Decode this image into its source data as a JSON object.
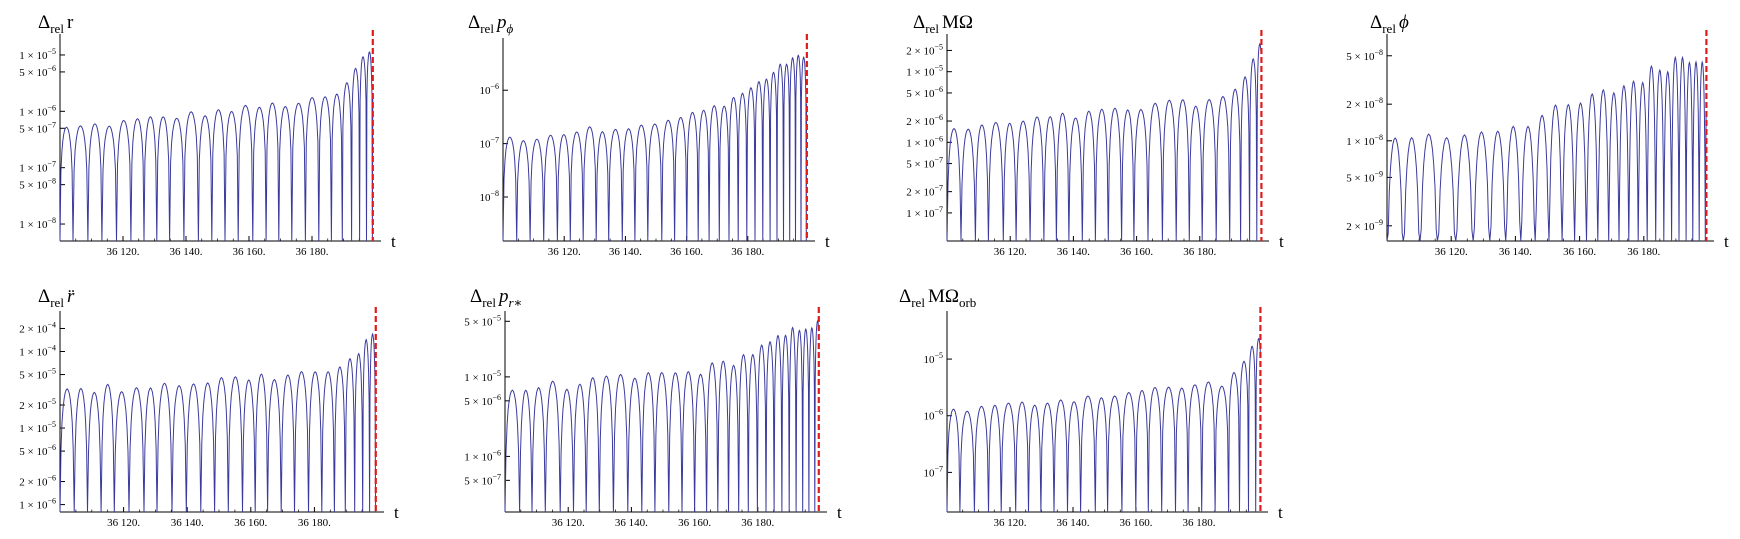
{
  "figure": {
    "colors": {
      "curve": "#3b3b9e",
      "marker": "#e01b1b",
      "axis": "#000000"
    }
  },
  "chart_data": [
    {
      "type": "line",
      "title_main": "Δ",
      "title_sub": "rel",
      "title_var": "r",
      "xlabel": "t",
      "xlim": [
        36100,
        36200
      ],
      "xticks": [
        "36 120.",
        "36 140.",
        "36 160.",
        "36 180."
      ],
      "xtick_values": [
        36120,
        36140,
        36160,
        36180
      ],
      "yscale": "log",
      "ylim": [
        5e-09,
        2e-05
      ],
      "yticks": [
        {
          "label": "1 × 10",
          "exp": "−5",
          "value": 1e-05
        },
        {
          "label": "5 × 10",
          "exp": "−6",
          "value": 5e-06
        },
        {
          "label": "1 × 10",
          "exp": "−6",
          "value": 1e-06
        },
        {
          "label": "5 × 10",
          "exp": "−7",
          "value": 5e-07
        },
        {
          "label": "1 × 10",
          "exp": "−7",
          "value": 1e-07
        },
        {
          "label": "5 × 10",
          "exp": "−8",
          "value": 5e-08
        },
        {
          "label": "1 × 10",
          "exp": "−8",
          "value": 1e-08
        }
      ],
      "series_shape": {
        "x_start": 36100,
        "peak_spacing": 4.3,
        "base_peak": 5e-07,
        "growth_start": 36180,
        "final_peak": 1.2e-05,
        "final_spacing": 1.6
      },
      "marker_x": 36199.3
    },
    {
      "type": "line",
      "title_main": "Δ",
      "title_sub": "rel",
      "title_var": "p",
      "title_var_sub": "ϕ",
      "xlabel": "t",
      "xlim": [
        36100,
        36200
      ],
      "xticks": [
        "36 120.",
        "36 140.",
        "36 160.",
        "36 180."
      ],
      "xtick_values": [
        36120,
        36140,
        36160,
        36180
      ],
      "yscale": "log",
      "ylim": [
        1.5e-09,
        8e-06
      ],
      "yticks": [
        {
          "label": "10",
          "exp": "−6",
          "value": 1e-06
        },
        {
          "label": "10",
          "exp": "−7",
          "value": 1e-07
        },
        {
          "label": "10",
          "exp": "−8",
          "value": 1e-08
        }
      ],
      "series_shape": {
        "x_start": 36100,
        "peak_spacing": 4.3,
        "base_peak": 1.2e-07,
        "growth_start": 36150,
        "final_peak": 4e-06,
        "final_spacing": 1.6
      },
      "marker_x": 36199.3
    },
    {
      "type": "line",
      "title_main": "Δ",
      "title_sub": "rel",
      "title_var": "MΩ",
      "xlabel": "t",
      "xlim": [
        36100,
        36200
      ],
      "xticks": [
        "36 120.",
        "36 140.",
        "36 160.",
        "36 180."
      ],
      "xtick_values": [
        36120,
        36140,
        36160,
        36180
      ],
      "yscale": "log",
      "ylim": [
        4e-08,
        3e-05
      ],
      "yticks": [
        {
          "label": "2 × 10",
          "exp": "−5",
          "value": 2e-05
        },
        {
          "label": "1 × 10",
          "exp": "−5",
          "value": 1e-05
        },
        {
          "label": "5 × 10",
          "exp": "−6",
          "value": 5e-06
        },
        {
          "label": "2 × 10",
          "exp": "−6",
          "value": 2e-06
        },
        {
          "label": "1 × 10",
          "exp": "−6",
          "value": 1e-06
        },
        {
          "label": "5 × 10",
          "exp": "−7",
          "value": 5e-07
        },
        {
          "label": "2 × 10",
          "exp": "−7",
          "value": 2e-07
        },
        {
          "label": "1 × 10",
          "exp": "−7",
          "value": 1e-07
        }
      ],
      "series_shape": {
        "x_start": 36100,
        "peak_spacing": 4.3,
        "base_peak": 1.5e-06,
        "growth_start": 36185,
        "final_peak": 2.2e-05,
        "final_spacing": 1.6
      },
      "marker_x": 36199.5
    },
    {
      "type": "line",
      "title_main": "Δ",
      "title_sub": "rel",
      "title_var": "ϕ",
      "xlabel": "t",
      "xlim": [
        36100,
        36200
      ],
      "xticks": [
        "36 120.",
        "36 140.",
        "36 160.",
        "36 180."
      ],
      "xtick_values": [
        36120,
        36140,
        36160,
        36180
      ],
      "yscale": "log",
      "ylim": [
        1.5e-09,
        7e-08
      ],
      "yticks": [
        {
          "label": "5 × 10",
          "exp": "−8",
          "value": 5e-08
        },
        {
          "label": "2 × 10",
          "exp": "−8",
          "value": 2e-08
        },
        {
          "label": "1 × 10",
          "exp": "−8",
          "value": 1e-08
        },
        {
          "label": "5 × 10",
          "exp": "−9",
          "value": 5e-09
        },
        {
          "label": "2 × 10",
          "exp": "−9",
          "value": 2e-09
        }
      ],
      "series_shape": {
        "x_start": 36100,
        "peak_spacing": 5.5,
        "base_peak": 1e-08,
        "growth_start": 36120,
        "final_peak": 5e-08,
        "final_spacing": 1.8
      },
      "marker_x": 36199.5
    },
    {
      "type": "line",
      "title_main": "Δ",
      "title_sub": "rel",
      "title_var": "r̈",
      "xlabel": "t",
      "xlim": [
        36100,
        36200
      ],
      "xticks": [
        "36 120.",
        "36 140.",
        "36 160.",
        "36 180."
      ],
      "xtick_values": [
        36120,
        36140,
        36160,
        36180
      ],
      "yscale": "log",
      "ylim": [
        8e-07,
        0.0003
      ],
      "yticks": [
        {
          "label": "2 × 10",
          "exp": "−4",
          "value": 0.0002
        },
        {
          "label": "1 × 10",
          "exp": "−4",
          "value": 0.0001
        },
        {
          "label": "5 × 10",
          "exp": "−5",
          "value": 5e-05
        },
        {
          "label": "2 × 10",
          "exp": "−5",
          "value": 2e-05
        },
        {
          "label": "1 × 10",
          "exp": "−5",
          "value": 1e-05
        },
        {
          "label": "5 × 10",
          "exp": "−6",
          "value": 5e-06
        },
        {
          "label": "2 × 10",
          "exp": "−6",
          "value": 2e-06
        },
        {
          "label": "1 × 10",
          "exp": "−6",
          "value": 1e-06
        }
      ],
      "series_shape": {
        "x_start": 36100,
        "peak_spacing": 4.3,
        "base_peak": 3e-05,
        "growth_start": 36180,
        "final_peak": 0.00015,
        "final_spacing": 1.6
      },
      "marker_x": 36199.3
    },
    {
      "type": "line",
      "title_main": "Δ",
      "title_sub": "rel",
      "title_var": "p",
      "title_var_sub": "r∗",
      "xlabel": "t",
      "xlim": [
        36100,
        36200
      ],
      "xticks": [
        "36 120.",
        "36 140.",
        "36 160.",
        "36 180."
      ],
      "xtick_values": [
        36120,
        36140,
        36160,
        36180
      ],
      "yscale": "log",
      "ylim": [
        2e-07,
        6e-05
      ],
      "yticks": [
        {
          "label": "5 × 10",
          "exp": "−5",
          "value": 5e-05
        },
        {
          "label": "1 × 10",
          "exp": "−5",
          "value": 1e-05
        },
        {
          "label": "5 × 10",
          "exp": "−6",
          "value": 5e-06
        },
        {
          "label": "1 × 10",
          "exp": "−6",
          "value": 1e-06
        },
        {
          "label": "5 × 10",
          "exp": "−7",
          "value": 5e-07
        }
      ],
      "series_shape": {
        "x_start": 36100,
        "peak_spacing": 4.3,
        "base_peak": 7e-06,
        "growth_start": 36150,
        "final_peak": 4.5e-05,
        "final_spacing": 1.7
      },
      "marker_x": 36199.3
    },
    {
      "type": "line",
      "title_main": "Δ",
      "title_sub": "rel",
      "title_var": "MΩ",
      "title_var_sub": "orb",
      "xlabel": "t",
      "xlim": [
        36100,
        36200
      ],
      "xticks": [
        "36 120.",
        "36 140.",
        "36 160.",
        "36 180."
      ],
      "xtick_values": [
        36120,
        36140,
        36160,
        36180
      ],
      "yscale": "log",
      "ylim": [
        2e-08,
        6e-05
      ],
      "yticks": [
        {
          "label": "10",
          "exp": "−5",
          "value": 1e-05
        },
        {
          "label": "10",
          "exp": "−6",
          "value": 1e-06
        },
        {
          "label": "10",
          "exp": "−7",
          "value": 1e-07
        }
      ],
      "series_shape": {
        "x_start": 36100,
        "peak_spacing": 4.3,
        "base_peak": 1.2e-06,
        "growth_start": 36185,
        "final_peak": 2.5e-05,
        "final_spacing": 1.6
      },
      "marker_x": 36199.5
    }
  ]
}
